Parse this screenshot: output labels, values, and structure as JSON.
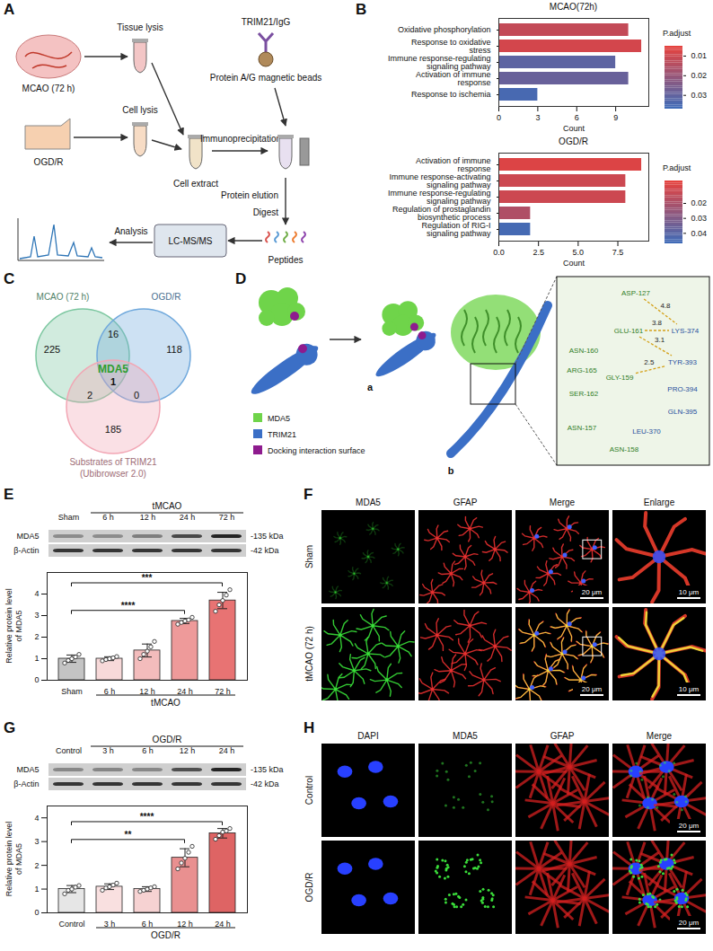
{
  "panel_A": {
    "letter": "A",
    "mcao": "MCAO (72 h)",
    "ogdr": "OGD/R",
    "tissue_lysis": "Tissue lysis",
    "cell_lysis": "Cell lysis",
    "cell_extract": "Cell extract",
    "antibody": "TRIM21/IgG",
    "beads": "Protein A/G magnetic beads",
    "ip": "Immunoprecipitation",
    "elution": "Protein elution",
    "digest": "Digest",
    "peptides": "Peptides",
    "ms": "LC-MS/MS",
    "analysis": "Analysis"
  },
  "chart_data": [
    {
      "panel": "B",
      "type": "bar",
      "orientation": "horizontal",
      "title": "MCAO(72h)",
      "categories": [
        "Oxidative phosphorylation",
        "Response to oxidative stress",
        "Immune response-regulating signaling pathway",
        "Activation of immune response",
        "Response to ischemia"
      ],
      "values": [
        10,
        11,
        9,
        10,
        3
      ],
      "p_adjust": [
        0.012,
        0.009,
        0.031,
        0.029,
        0.035
      ],
      "xlabel": "Count",
      "xlim": [
        0,
        11.55
      ],
      "xticks": [
        0,
        3,
        6,
        9
      ],
      "colorbar": {
        "title": "P.adjust",
        "range": [
          0.005,
          0.037
        ],
        "ticks": [
          0.01,
          0.02,
          0.03
        ]
      }
    },
    {
      "type": "bar",
      "orientation": "horizontal",
      "title": "OGD/R",
      "categories": [
        "Activation of immune response",
        "Immune response-activating signaling pathway",
        "Immune response-regulating signaling pathway",
        "Regulation of prostaglandin biosynthetic process",
        "Regulation of RIG-I signaling pathway"
      ],
      "values": [
        9,
        8,
        8,
        2,
        2
      ],
      "p_adjust": [
        0.008,
        0.012,
        0.012,
        0.019,
        0.045
      ],
      "xlabel": "Count",
      "xlim": [
        0,
        9.45
      ],
      "xticks": [
        {
          "value": 0,
          "label": "0.0"
        },
        {
          "value": 2.5,
          "label": "2.5"
        },
        {
          "value": 5,
          "label": "5.0"
        },
        {
          "value": 7.5,
          "label": "7.5"
        }
      ],
      "colorbar": {
        "title": "P.adjust",
        "range": [
          0.005,
          0.047
        ],
        "ticks": [
          0.02,
          0.03,
          0.04
        ]
      }
    },
    {
      "panel": "E",
      "type": "bar",
      "categories": [
        "Sham",
        "6 h",
        "12 h",
        "24 h",
        "72 h"
      ],
      "values": [
        1.0,
        1.0,
        1.38,
        2.75,
        3.7
      ],
      "errors": [
        0.17,
        0.09,
        0.3,
        0.12,
        0.38
      ],
      "points": [
        [
          0.8,
          0.92,
          1.0,
          1.08,
          1.2
        ],
        [
          0.9,
          0.96,
          1.0,
          1.04,
          1.1
        ],
        [
          1.0,
          1.2,
          1.35,
          1.55,
          1.8
        ],
        [
          2.6,
          2.68,
          2.75,
          2.8,
          2.92
        ],
        [
          3.2,
          3.5,
          3.7,
          3.95,
          4.2
        ]
      ],
      "colors": [
        "#c4c4c4",
        "#f7d9d9",
        "#f3bcbc",
        "#ee9a9a",
        "#e87373"
      ],
      "ylabel": "Relative protein level of MDA5",
      "ylim": [
        0,
        5
      ],
      "yticks": [
        0,
        1,
        2,
        3,
        4
      ],
      "group": {
        "label": "tMCAO",
        "from": "6 h",
        "to": "72 h"
      },
      "significance": [
        {
          "from": "Sham",
          "to": "72 h",
          "label": "***"
        },
        {
          "from": "Sham",
          "to": "24 h",
          "label": "****"
        }
      ],
      "blot": {
        "rows": [
          "MDA5",
          "β-Actin"
        ],
        "sizes": [
          "-135 kDa",
          "-42 kDa"
        ]
      }
    },
    {
      "panel": "G",
      "type": "bar",
      "categories": [
        "Control",
        "3 h",
        "6 h",
        "12 h",
        "24 h"
      ],
      "values": [
        1.0,
        1.1,
        1.0,
        2.32,
        3.35
      ],
      "errors": [
        0.15,
        0.12,
        0.1,
        0.38,
        0.2
      ],
      "points": [
        [
          0.8,
          0.95,
          1.0,
          1.08,
          1.15
        ],
        [
          0.95,
          1.05,
          1.1,
          1.17,
          1.25
        ],
        [
          0.9,
          0.95,
          1.0,
          1.05,
          1.1
        ],
        [
          1.85,
          2.1,
          2.3,
          2.55,
          2.8
        ],
        [
          3.1,
          3.25,
          3.4,
          3.45,
          3.55
        ]
      ],
      "colors": [
        "#e6e6e6",
        "#f9e0e0",
        "#f6d2d2",
        "#e99090",
        "#de6464"
      ],
      "ylabel": "Relative protein level of MDA5",
      "ylim": [
        0,
        4.5
      ],
      "yticks": [
        0,
        1,
        2,
        3,
        4
      ],
      "group": {
        "label": "OGD/R",
        "from": "3 h",
        "to": "24 h"
      },
      "significance": [
        {
          "from": "Control",
          "to": "24 h",
          "label": "****"
        },
        {
          "from": "Control",
          "to": "12 h",
          "label": "**"
        }
      ],
      "blot": {
        "rows": [
          "MDA5",
          "β-Actin"
        ],
        "sizes": [
          "-135 kDa",
          "-42 kDa"
        ]
      }
    }
  ],
  "panel_C": {
    "letter": "C",
    "sets": [
      {
        "name": "MCAO (72 h)",
        "color": "#7cc7a0"
      },
      {
        "name": "OGD/R",
        "color": "#6fa8dc"
      },
      {
        "name": "Substrates of TRIM21",
        "subtitle": "(Ubibrowser 2.0)",
        "color": "#f2a6b4"
      }
    ],
    "counts": {
      "mcao_only": 225,
      "ogdr_only": 118,
      "substrates_only": 185,
      "mcao_ogdr": 16,
      "mcao_substrates": 2,
      "ogdr_substrates": 0,
      "all_three": 1
    },
    "center_label": "MDA5"
  },
  "panel_D": {
    "letter": "D",
    "parts": [
      "a",
      "b"
    ],
    "legend": [
      {
        "name": "MDA5",
        "color": "#6fd44a"
      },
      {
        "name": "TRIM21",
        "color": "#3b6fc6"
      },
      {
        "name": "Docking interaction surface",
        "color": "#8e1b8e"
      }
    ],
    "residues_MDA5": [
      "ASP-127",
      "ASN-160",
      "GLU-161",
      "ARG-165",
      "GLY-159",
      "SER-162",
      "ASN-157",
      "ASN-158"
    ],
    "residues_TRIM21": [
      "LYS-374",
      "TYR-393",
      "PRO-394",
      "GLN-395",
      "LEU-370"
    ],
    "bonds": [
      {
        "from": "ASP-127",
        "to": "LYS-374",
        "distance": 4.8
      },
      {
        "from": "GLU-161",
        "to": "LYS-374",
        "distance": 3.8
      },
      {
        "from": "GLU-161",
        "to": "TYR-393",
        "distance": 3.1
      },
      {
        "from": "GLY-159",
        "to": "TYR-393",
        "distance": 2.5
      }
    ]
  },
  "panel_F": {
    "letter": "F",
    "columns": [
      "MDA5",
      "GFAP",
      "Merge",
      "Enlarge"
    ],
    "rows": [
      "Sham",
      "tMCAO (72 h)"
    ],
    "scale_bars": [
      null,
      null,
      "20 μm",
      "10 μm"
    ]
  },
  "panel_H": {
    "letter": "H",
    "columns": [
      "DAPI",
      "MDA5",
      "GFAP",
      "Merge"
    ],
    "rows": [
      "Control",
      "OGD/R"
    ],
    "scale_bars": [
      null,
      null,
      null,
      "20 μm"
    ]
  }
}
